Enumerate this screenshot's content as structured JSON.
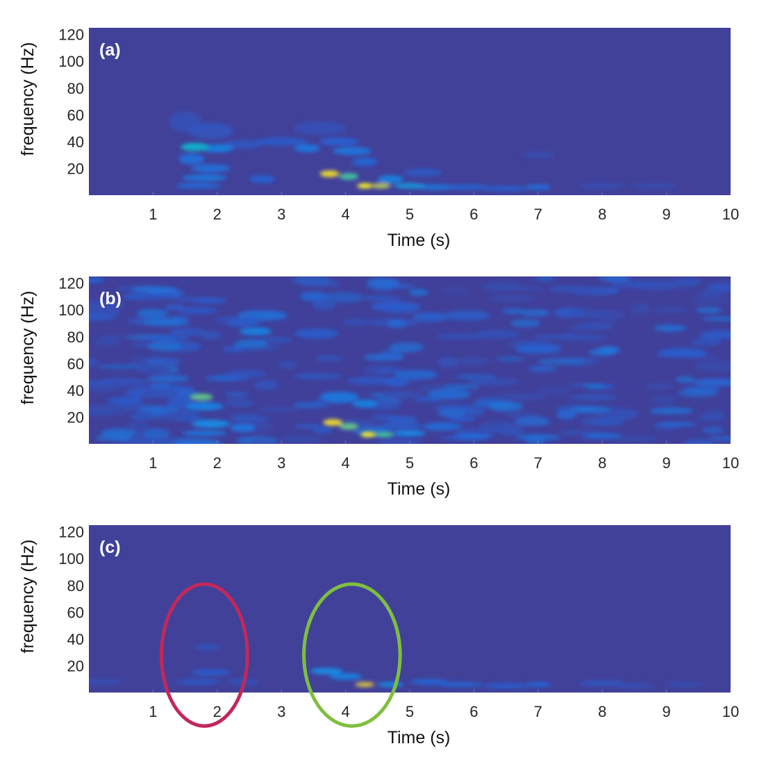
{
  "chart_data": [
    {
      "type": "heatmap",
      "panel_label": "(a)",
      "xlabel": "Time (s)",
      "ylabel": "frequency (Hz)",
      "xlim": [
        0,
        10
      ],
      "ylim": [
        0,
        125
      ],
      "xticks": [
        1,
        2,
        3,
        4,
        5,
        6,
        7,
        8,
        9,
        10
      ],
      "yticks": [
        20,
        40,
        60,
        80,
        100,
        120
      ],
      "colors": {
        "background": "#41419a"
      },
      "blobs": [
        {
          "t": 1.5,
          "f": 55,
          "st": 0.25,
          "sf": 8,
          "v": 0.12
        },
        {
          "t": 1.9,
          "f": 48,
          "st": 0.35,
          "sf": 6,
          "v": 0.16
        },
        {
          "t": 1.65,
          "f": 36,
          "st": 0.22,
          "sf": 3,
          "v": 0.6
        },
        {
          "t": 2.0,
          "f": 35,
          "st": 0.25,
          "sf": 3,
          "v": 0.4
        },
        {
          "t": 1.6,
          "f": 27,
          "st": 0.2,
          "sf": 4,
          "v": 0.32
        },
        {
          "t": 1.9,
          "f": 20,
          "st": 0.3,
          "sf": 3,
          "v": 0.32
        },
        {
          "t": 1.8,
          "f": 13,
          "st": 0.35,
          "sf": 2.5,
          "v": 0.35
        },
        {
          "t": 1.7,
          "f": 7,
          "st": 0.35,
          "sf": 2,
          "v": 0.3
        },
        {
          "t": 2.4,
          "f": 38,
          "st": 0.3,
          "sf": 3,
          "v": 0.18
        },
        {
          "t": 2.7,
          "f": 12,
          "st": 0.2,
          "sf": 3,
          "v": 0.25
        },
        {
          "t": 3.0,
          "f": 40,
          "st": 0.4,
          "sf": 3,
          "v": 0.2
        },
        {
          "t": 3.4,
          "f": 35,
          "st": 0.2,
          "sf": 3,
          "v": 0.35
        },
        {
          "t": 3.6,
          "f": 50,
          "st": 0.4,
          "sf": 5,
          "v": 0.12
        },
        {
          "t": 3.9,
          "f": 40,
          "st": 0.3,
          "sf": 3,
          "v": 0.25
        },
        {
          "t": 4.1,
          "f": 33,
          "st": 0.3,
          "sf": 3,
          "v": 0.35
        },
        {
          "t": 4.3,
          "f": 25,
          "st": 0.2,
          "sf": 3,
          "v": 0.28
        },
        {
          "t": 3.75,
          "f": 16,
          "st": 0.15,
          "sf": 2.5,
          "v": 0.95
        },
        {
          "t": 4.05,
          "f": 14,
          "st": 0.15,
          "sf": 2.5,
          "v": 0.7
        },
        {
          "t": 4.3,
          "f": 7,
          "st": 0.12,
          "sf": 2,
          "v": 1.0
        },
        {
          "t": 4.55,
          "f": 7,
          "st": 0.15,
          "sf": 2,
          "v": 0.85
        },
        {
          "t": 4.7,
          "f": 12,
          "st": 0.2,
          "sf": 3,
          "v": 0.4
        },
        {
          "t": 5.0,
          "f": 7,
          "st": 0.25,
          "sf": 2,
          "v": 0.5
        },
        {
          "t": 5.4,
          "f": 6,
          "st": 0.3,
          "sf": 2,
          "v": 0.35
        },
        {
          "t": 5.2,
          "f": 17,
          "st": 0.3,
          "sf": 3,
          "v": 0.18
        },
        {
          "t": 5.9,
          "f": 6,
          "st": 0.35,
          "sf": 1.8,
          "v": 0.28
        },
        {
          "t": 6.5,
          "f": 5,
          "st": 0.35,
          "sf": 1.8,
          "v": 0.25
        },
        {
          "t": 7.0,
          "f": 6,
          "st": 0.2,
          "sf": 2,
          "v": 0.32
        },
        {
          "t": 8.0,
          "f": 7,
          "st": 0.35,
          "sf": 2,
          "v": 0.12
        },
        {
          "t": 8.8,
          "f": 7,
          "st": 0.35,
          "sf": 2,
          "v": 0.1
        },
        {
          "t": 7.0,
          "f": 30,
          "st": 0.25,
          "sf": 3,
          "v": 0.08
        }
      ]
    },
    {
      "type": "heatmap",
      "panel_label": "(b)",
      "xlabel": "Time (s)",
      "ylabel": "frequency (Hz)",
      "xlim": [
        0,
        10
      ],
      "ylim": [
        0,
        125
      ],
      "xticks": [
        1,
        2,
        3,
        4,
        5,
        6,
        7,
        8,
        9,
        10
      ],
      "yticks": [
        20,
        40,
        60,
        80,
        100,
        120
      ],
      "colors": {
        "background": "#40409a"
      },
      "noise": {
        "count": 240,
        "level": 0.3,
        "seed": 7
      },
      "blobs": [
        {
          "t": 1.75,
          "f": 35,
          "st": 0.18,
          "sf": 2.5,
          "v": 0.75
        },
        {
          "t": 1.8,
          "f": 28,
          "st": 0.3,
          "sf": 3,
          "v": 0.4
        },
        {
          "t": 1.9,
          "f": 15,
          "st": 0.3,
          "sf": 3,
          "v": 0.45
        },
        {
          "t": 1.8,
          "f": 8,
          "st": 0.35,
          "sf": 2,
          "v": 0.35
        },
        {
          "t": 2.4,
          "f": 12,
          "st": 0.2,
          "sf": 3,
          "v": 0.35
        },
        {
          "t": 2.6,
          "f": 84,
          "st": 0.25,
          "sf": 3,
          "v": 0.4
        },
        {
          "t": 3.9,
          "f": 35,
          "st": 0.3,
          "sf": 4,
          "v": 0.35
        },
        {
          "t": 4.3,
          "f": 30,
          "st": 0.2,
          "sf": 3,
          "v": 0.4
        },
        {
          "t": 3.8,
          "f": 16,
          "st": 0.15,
          "sf": 2.5,
          "v": 0.95
        },
        {
          "t": 4.05,
          "f": 13,
          "st": 0.15,
          "sf": 2.5,
          "v": 0.75
        },
        {
          "t": 4.35,
          "f": 7,
          "st": 0.12,
          "sf": 2,
          "v": 1.0
        },
        {
          "t": 4.6,
          "f": 7,
          "st": 0.15,
          "sf": 2,
          "v": 0.7
        },
        {
          "t": 5.0,
          "f": 8,
          "st": 0.25,
          "sf": 2,
          "v": 0.45
        },
        {
          "t": 5.5,
          "f": 13,
          "st": 0.3,
          "sf": 3,
          "v": 0.3
        },
        {
          "t": 6.0,
          "f": 6,
          "st": 0.3,
          "sf": 2,
          "v": 0.3
        },
        {
          "t": 7.0,
          "f": 5,
          "st": 0.35,
          "sf": 2,
          "v": 0.3
        },
        {
          "t": 8.0,
          "f": 6,
          "st": 0.3,
          "sf": 2,
          "v": 0.3
        }
      ]
    },
    {
      "type": "heatmap",
      "panel_label": "(c)",
      "xlabel": "Time (s)",
      "ylabel": "frequency (Hz)",
      "xlim": [
        0,
        10
      ],
      "ylim": [
        0,
        125
      ],
      "xticks": [
        1,
        2,
        3,
        4,
        5,
        6,
        7,
        8,
        9,
        10
      ],
      "yticks": [
        20,
        40,
        60,
        80,
        100,
        120
      ],
      "colors": {
        "background": "#41419a"
      },
      "blobs": [
        {
          "t": 0.2,
          "f": 8,
          "st": 0.3,
          "sf": 2,
          "v": 0.12
        },
        {
          "t": 1.85,
          "f": 34,
          "st": 0.2,
          "sf": 1.8,
          "v": 0.18
        },
        {
          "t": 1.9,
          "f": 15,
          "st": 0.3,
          "sf": 2.5,
          "v": 0.22
        },
        {
          "t": 1.7,
          "f": 8,
          "st": 0.35,
          "sf": 2,
          "v": 0.2
        },
        {
          "t": 2.4,
          "f": 8,
          "st": 0.25,
          "sf": 2,
          "v": 0.15
        },
        {
          "t": 3.7,
          "f": 16,
          "st": 0.25,
          "sf": 2.5,
          "v": 0.45
        },
        {
          "t": 4.0,
          "f": 12,
          "st": 0.25,
          "sf": 2.5,
          "v": 0.4
        },
        {
          "t": 4.3,
          "f": 6,
          "st": 0.15,
          "sf": 1.8,
          "v": 0.9
        },
        {
          "t": 4.7,
          "f": 6,
          "st": 0.2,
          "sf": 1.8,
          "v": 0.45
        },
        {
          "t": 5.3,
          "f": 8,
          "st": 0.3,
          "sf": 2,
          "v": 0.28
        },
        {
          "t": 5.8,
          "f": 6,
          "st": 0.35,
          "sf": 1.8,
          "v": 0.28
        },
        {
          "t": 6.5,
          "f": 5,
          "st": 0.35,
          "sf": 1.8,
          "v": 0.25
        },
        {
          "t": 7.0,
          "f": 6,
          "st": 0.2,
          "sf": 1.8,
          "v": 0.28
        },
        {
          "t": 8.0,
          "f": 7,
          "st": 0.35,
          "sf": 2,
          "v": 0.18
        },
        {
          "t": 8.5,
          "f": 5,
          "st": 0.3,
          "sf": 1.8,
          "v": 0.12
        },
        {
          "t": 9.3,
          "f": 6,
          "st": 0.3,
          "sf": 2,
          "v": 0.1
        }
      ],
      "annotations": [
        {
          "shape": "ellipse",
          "color": "#c2285a",
          "cx": 1.8,
          "cy": 28,
          "rx": 0.67,
          "ry": 53
        },
        {
          "shape": "ellipse",
          "color": "#7ebf3e",
          "cx": 4.1,
          "cy": 28,
          "rx": 0.75,
          "ry": 53
        }
      ]
    }
  ]
}
